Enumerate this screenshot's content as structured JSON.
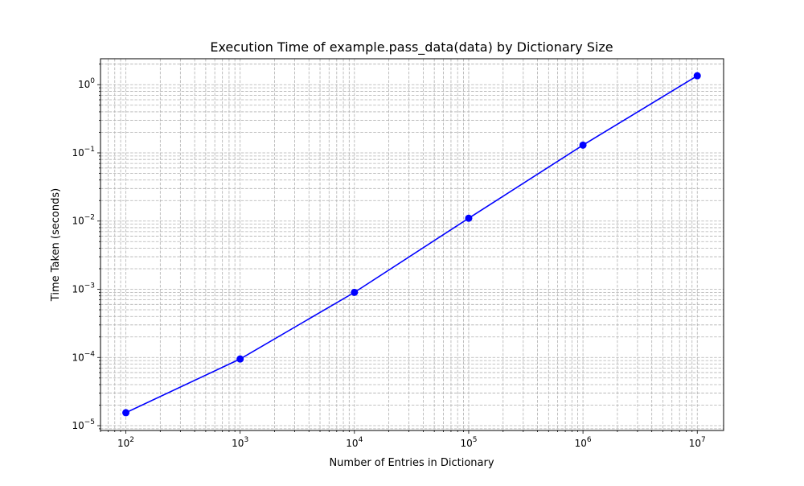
{
  "chart_data": {
    "type": "line",
    "title": "Execution Time of example.pass_data(data) by Dictionary Size",
    "xlabel": "Number of Entries in Dictionary",
    "ylabel": "Time Taken (seconds)",
    "x_scale": "log",
    "y_scale": "log",
    "xlim": [
      60,
      17000000
    ],
    "ylim": [
      8.5e-06,
      2.4
    ],
    "grid": "both (major and minor), dashed",
    "x_tick_labels": [
      {
        "base": "10",
        "exp": "2",
        "value": 100
      },
      {
        "base": "10",
        "exp": "3",
        "value": 1000
      },
      {
        "base": "10",
        "exp": "4",
        "value": 10000
      },
      {
        "base": "10",
        "exp": "5",
        "value": 100000
      },
      {
        "base": "10",
        "exp": "6",
        "value": 1000000
      },
      {
        "base": "10",
        "exp": "7",
        "value": 10000000
      }
    ],
    "y_tick_labels": [
      {
        "base": "10",
        "exp": "−5",
        "value": 1e-05
      },
      {
        "base": "10",
        "exp": "−4",
        "value": 0.0001
      },
      {
        "base": "10",
        "exp": "−3",
        "value": 0.001
      },
      {
        "base": "10",
        "exp": "−2",
        "value": 0.01
      },
      {
        "base": "10",
        "exp": "−1",
        "value": 0.1
      },
      {
        "base": "10",
        "exp": "0",
        "value": 1
      }
    ],
    "series": [
      {
        "color": "#0000ff",
        "marker": "circle",
        "x": [
          100,
          1000,
          10000,
          100000,
          1000000,
          10000000
        ],
        "y": [
          1.55e-05,
          9.5e-05,
          0.0009,
          0.011,
          0.13,
          1.35
        ]
      }
    ]
  }
}
